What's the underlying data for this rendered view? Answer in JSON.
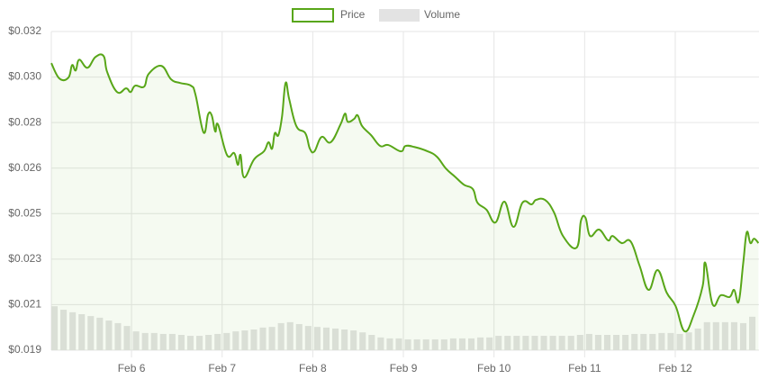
{
  "chart_data": {
    "type": "line",
    "xlim": [
      -0.885,
      6.924
    ],
    "xticks": [
      {
        "value": 0,
        "label": "Feb 6"
      },
      {
        "value": 1,
        "label": "Feb 7"
      },
      {
        "value": 2,
        "label": "Feb 8"
      },
      {
        "value": 3,
        "label": "Feb 9"
      },
      {
        "value": 4,
        "label": "Feb 10"
      },
      {
        "value": 5,
        "label": "Feb 11"
      },
      {
        "value": 6,
        "label": "Feb 12"
      }
    ],
    "ylim": [
      0.019,
      0.032
    ],
    "yticks": [
      {
        "value": 0.019,
        "label": "$0.019"
      },
      {
        "value": 0.020857,
        "label": "$0.021"
      },
      {
        "value": 0.022714,
        "label": "$0.023"
      },
      {
        "value": 0.024571,
        "label": "$0.025"
      },
      {
        "value": 0.026429,
        "label": "$0.026"
      },
      {
        "value": 0.028286,
        "label": "$0.028"
      },
      {
        "value": 0.030143,
        "label": "$0.030"
      },
      {
        "value": 0.032,
        "label": "$0.032"
      }
    ],
    "y2lim": [
      0,
      100
    ],
    "grid": true,
    "legend": "top",
    "series": [
      {
        "name": "Price",
        "color": "#58a618",
        "fill": "rgba(88,166,24,0.06)",
        "x": [
          -0.885,
          -0.795,
          -0.696,
          -0.656,
          -0.616,
          -0.577,
          -0.487,
          -0.398,
          -0.308,
          -0.268,
          -0.159,
          -0.06,
          -0.01,
          0.04,
          0.139,
          0.189,
          0.328,
          0.437,
          0.537,
          0.656,
          0.706,
          0.795,
          0.845,
          0.885,
          0.924,
          0.954,
          1.054,
          1.133,
          1.173,
          1.203,
          1.243,
          1.352,
          1.461,
          1.511,
          1.551,
          1.581,
          1.62,
          1.66,
          1.7,
          1.74,
          1.819,
          1.918,
          1.968,
          2.018,
          2.097,
          2.197,
          2.306,
          2.356,
          2.386,
          2.455,
          2.495,
          2.545,
          2.644,
          2.744,
          2.833,
          2.972,
          3.022,
          3.121,
          3.27,
          3.37,
          3.469,
          3.569,
          3.668,
          3.767,
          3.817,
          3.917,
          4.016,
          4.115,
          4.215,
          4.314,
          4.414,
          4.463,
          4.563,
          4.662,
          4.761,
          4.911,
          4.96,
          5.01,
          5.06,
          5.159,
          5.258,
          5.308,
          5.408,
          5.507,
          5.606,
          5.706,
          5.805,
          5.905,
          6.004,
          6.103,
          6.203,
          6.302,
          6.332,
          6.412,
          6.501,
          6.6,
          6.65,
          6.7,
          6.75,
          6.789,
          6.829,
          6.869,
          6.918
        ],
        "values": [
          0.03071,
          0.03008,
          0.03012,
          0.03063,
          0.03041,
          0.03085,
          0.03052,
          0.03096,
          0.031,
          0.03034,
          0.02953,
          0.02968,
          0.02953,
          0.02979,
          0.02975,
          0.03027,
          0.0306,
          0.03005,
          0.0299,
          0.02979,
          0.02942,
          0.02788,
          0.02862,
          0.02858,
          0.02792,
          0.02821,
          0.02696,
          0.02704,
          0.02656,
          0.02696,
          0.02605,
          0.02678,
          0.02711,
          0.02748,
          0.02722,
          0.02785,
          0.02777,
          0.02851,
          0.0299,
          0.02924,
          0.02814,
          0.02785,
          0.02722,
          0.02711,
          0.0277,
          0.02748,
          0.02821,
          0.02865,
          0.02832,
          0.02843,
          0.02858,
          0.02814,
          0.02777,
          0.02733,
          0.02737,
          0.02711,
          0.02733,
          0.02729,
          0.02711,
          0.02689,
          0.02641,
          0.02608,
          0.02575,
          0.02557,
          0.02502,
          0.02473,
          0.02421,
          0.02506,
          0.02403,
          0.02502,
          0.02495,
          0.02513,
          0.02513,
          0.02462,
          0.02366,
          0.02318,
          0.02429,
          0.0244,
          0.02366,
          0.02392,
          0.02348,
          0.02366,
          0.02337,
          0.02344,
          0.02245,
          0.02146,
          0.02227,
          0.02135,
          0.0208,
          0.01977,
          0.02043,
          0.02161,
          0.02256,
          0.02087,
          0.02124,
          0.02117,
          0.02146,
          0.02098,
          0.02256,
          0.02381,
          0.02337,
          0.02355,
          0.02337
        ]
      },
      {
        "name": "Volume",
        "color": "#e3e3e3",
        "axis": "y2",
        "x": [
          -0.85,
          -0.75,
          -0.65,
          -0.55,
          -0.45,
          -0.35,
          -0.25,
          -0.15,
          -0.05,
          0.05,
          0.15,
          0.25,
          0.35,
          0.45,
          0.55,
          0.65,
          0.75,
          0.85,
          0.95,
          1.05,
          1.15,
          1.25,
          1.35,
          1.45,
          1.55,
          1.65,
          1.75,
          1.85,
          1.95,
          2.05,
          2.15,
          2.25,
          2.35,
          2.45,
          2.55,
          2.65,
          2.75,
          2.85,
          2.95,
          3.05,
          3.15,
          3.25,
          3.35,
          3.45,
          3.55,
          3.65,
          3.75,
          3.85,
          3.95,
          4.05,
          4.15,
          4.25,
          4.35,
          4.45,
          4.55,
          4.65,
          4.75,
          4.85,
          4.95,
          5.05,
          5.15,
          5.25,
          5.35,
          5.45,
          5.55,
          5.65,
          5.75,
          5.85,
          5.95,
          6.05,
          6.15,
          6.25,
          6.35,
          6.45,
          6.55,
          6.65,
          6.75,
          6.85
        ],
        "values": [
          13.8,
          12.7,
          11.9,
          11.3,
          10.7,
          10.2,
          9.3,
          8.5,
          7.6,
          5.9,
          5.4,
          5.4,
          5.1,
          5.1,
          4.8,
          4.5,
          4.5,
          4.8,
          5.1,
          5.4,
          5.9,
          6.2,
          6.5,
          7.1,
          7.3,
          8.5,
          8.8,
          8.2,
          7.6,
          7.3,
          7.1,
          6.8,
          6.5,
          6.2,
          5.6,
          4.8,
          4.0,
          3.7,
          3.7,
          3.4,
          3.4,
          3.4,
          3.4,
          3.4,
          3.7,
          3.7,
          3.7,
          4.0,
          4.0,
          4.5,
          4.5,
          4.5,
          4.5,
          4.5,
          4.5,
          4.5,
          4.5,
          4.5,
          4.8,
          5.1,
          4.8,
          4.8,
          4.8,
          4.8,
          5.1,
          5.1,
          5.1,
          5.4,
          5.4,
          5.1,
          5.6,
          6.8,
          8.8,
          8.8,
          8.8,
          8.8,
          8.5,
          10.5
        ]
      }
    ]
  }
}
